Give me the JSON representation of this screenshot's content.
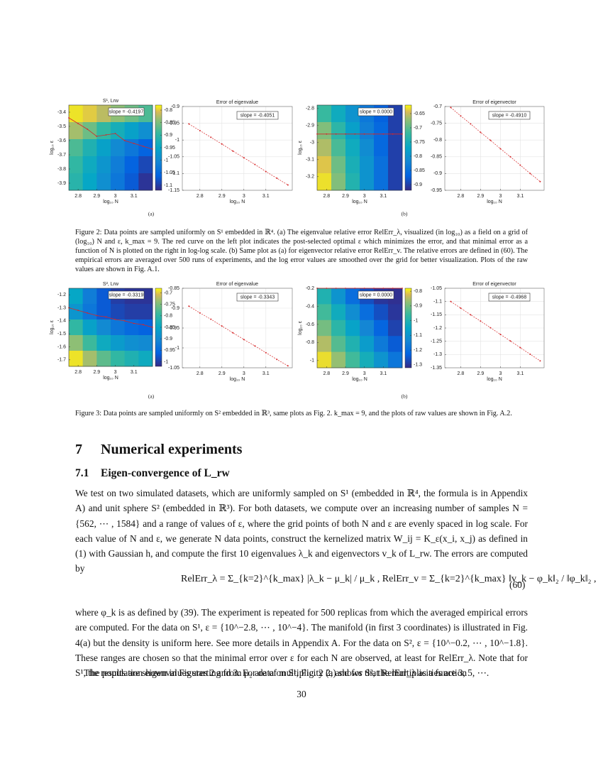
{
  "chart_data": [
    {
      "type": "heatmap",
      "title": "S¹, Lrw",
      "xlabel": "log₁₀ N",
      "ylabel": "log₁₀ ε",
      "xlim": [
        2.75,
        3.2
      ],
      "ylim": [
        -3.95,
        -3.35
      ],
      "xticks": [
        2.8,
        2.9,
        3,
        3.1
      ],
      "yticks": [
        -3.4,
        -3.5,
        -3.6,
        -3.7,
        -3.8,
        -3.9
      ],
      "z": [
        [
          -0.79,
          -0.8,
          -0.82,
          -0.84,
          -0.86,
          -0.88
        ],
        [
          -0.83,
          -0.86,
          -0.9,
          -0.93,
          -0.96,
          -0.99
        ],
        [
          -0.88,
          -0.92,
          -0.96,
          -1.0,
          -1.03,
          -1.06
        ],
        [
          -0.9,
          -0.94,
          -0.98,
          -1.02,
          -1.06,
          -1.09
        ],
        [
          -0.91,
          -0.95,
          -0.99,
          -1.03,
          -1.07,
          -1.11
        ]
      ],
      "zlim": [
        -1.12,
        -0.78
      ],
      "zticks": [
        -0.8,
        -0.85,
        -0.9,
        -0.95,
        -1,
        -1.05,
        -1.1
      ],
      "curve": {
        "x": [
          2.75,
          2.8,
          2.85,
          2.9,
          2.95,
          3.0,
          3.05,
          3.1,
          3.15,
          3.2
        ],
        "y": [
          -3.44,
          -3.48,
          -3.52,
          -3.57,
          -3.56,
          -3.55,
          -3.6,
          -3.62,
          -3.64,
          -3.66
        ],
        "color": "#d62728"
      },
      "annotation": "slope = -0.4197"
    },
    {
      "type": "line",
      "title": "Error of eigenvalue",
      "xlabel": "log₁₀ N",
      "xlim": [
        2.72,
        3.22
      ],
      "ylim": [
        -1.15,
        -0.9
      ],
      "xticks": [
        2.8,
        2.9,
        3,
        3.1
      ],
      "yticks": [
        -0.9,
        -0.95,
        -1,
        -1.05,
        -1.1,
        -1.15
      ],
      "x": [
        2.75,
        2.8,
        2.85,
        2.9,
        2.95,
        3.0,
        3.05,
        3.1,
        3.15,
        3.2
      ],
      "values": [
        -0.952,
        -0.972,
        -0.992,
        -1.012,
        -1.033,
        -1.053,
        -1.073,
        -1.094,
        -1.114,
        -1.134
      ],
      "color": "#d62728",
      "grid": true,
      "annotation": "slope = -0.4051"
    },
    {
      "type": "heatmap",
      "title": null,
      "xlabel": "log₁₀ N",
      "ylabel": "log₁₀ ε",
      "xlim": [
        2.75,
        3.2
      ],
      "ylim": [
        -3.28,
        -2.78
      ],
      "xticks": [
        2.8,
        2.9,
        3,
        3.1
      ],
      "yticks": [
        -2.8,
        -2.9,
        -3,
        -3.1,
        -3.2
      ],
      "z": [
        [
          -0.72,
          -0.76,
          -0.8,
          -0.84,
          -0.87,
          -0.9
        ],
        [
          -0.68,
          -0.73,
          -0.78,
          -0.83,
          -0.86,
          -0.9
        ],
        [
          -0.66,
          -0.71,
          -0.76,
          -0.81,
          -0.86,
          -0.9
        ],
        [
          -0.64,
          -0.69,
          -0.75,
          -0.8,
          -0.85,
          -0.9
        ],
        [
          -0.63,
          -0.68,
          -0.74,
          -0.8,
          -0.85,
          -0.9
        ]
      ],
      "zlim": [
        -0.92,
        -0.62
      ],
      "zticks": [
        -0.65,
        -0.7,
        -0.75,
        -0.8,
        -0.85,
        -0.9
      ],
      "curve": {
        "x": [
          2.75,
          2.8,
          2.85,
          2.9,
          2.95,
          3.0,
          3.05,
          3.1,
          3.15,
          3.2
        ],
        "y": [
          -2.95,
          -2.95,
          -2.95,
          -2.95,
          -2.95,
          -2.95,
          -2.95,
          -2.95,
          -2.95,
          -2.95
        ],
        "color": "#d62728"
      },
      "annotation": "slope = 0.0000"
    },
    {
      "type": "line",
      "title": "Error of eigenvector",
      "xlabel": "log₁₀ N",
      "xlim": [
        2.72,
        3.22
      ],
      "ylim": [
        -0.95,
        -0.7
      ],
      "xticks": [
        2.8,
        2.9,
        3,
        3.1
      ],
      "yticks": [
        -0.7,
        -0.75,
        -0.8,
        -0.85,
        -0.9,
        -0.95
      ],
      "x": [
        2.75,
        2.8,
        2.85,
        2.9,
        2.95,
        3.0,
        3.05,
        3.1,
        3.15,
        3.2
      ],
      "values": [
        -0.703,
        -0.728,
        -0.752,
        -0.777,
        -0.801,
        -0.826,
        -0.85,
        -0.875,
        -0.9,
        -0.924
      ],
      "color": "#d62728",
      "grid": true,
      "annotation": "slope = -0.4910"
    },
    {
      "type": "heatmap",
      "title": "S², Lrw",
      "xlabel": "log₁₀ N",
      "ylabel": "log₁₀ ε",
      "xlim": [
        2.75,
        3.2
      ],
      "ylim": [
        -1.75,
        -1.15
      ],
      "xticks": [
        2.8,
        2.9,
        3,
        3.1
      ],
      "yticks": [
        -1.2,
        -1.3,
        -1.4,
        -1.5,
        -1.6,
        -1.7
      ],
      "z": [
        [
          -0.85,
          -0.92,
          -0.97,
          -1.0,
          -1.01,
          -1.01
        ],
        [
          -0.88,
          -0.93,
          -0.97,
          -0.99,
          -1.0,
          -1.0
        ],
        [
          -0.8,
          -0.86,
          -0.9,
          -0.93,
          -0.95,
          -0.96
        ],
        [
          -0.74,
          -0.79,
          -0.84,
          -0.87,
          -0.89,
          -0.9
        ],
        [
          -0.69,
          -0.73,
          -0.77,
          -0.8,
          -0.82,
          -0.84
        ]
      ],
      "zlim": [
        -1.02,
        -0.68
      ],
      "zticks": [
        -0.7,
        -0.75,
        -0.8,
        -0.85,
        -0.9,
        -0.95,
        -1
      ],
      "curve": {
        "x": [
          2.75,
          2.8,
          2.85,
          2.9,
          2.95,
          3.0,
          3.05,
          3.1,
          3.15,
          3.2
        ],
        "y": [
          -1.3,
          -1.32,
          -1.34,
          -1.36,
          -1.37,
          -1.39,
          -1.4,
          -1.42,
          -1.43,
          -1.45
        ],
        "color": "#d62728"
      },
      "annotation": "slope = -0.3319"
    },
    {
      "type": "line",
      "title": "Error of eigenvalue",
      "xlabel": "log₁₀ N",
      "xlim": [
        2.72,
        3.22
      ],
      "ylim": [
        -1.05,
        -0.85
      ],
      "xticks": [
        2.8,
        2.9,
        3,
        3.1
      ],
      "yticks": [
        -0.85,
        -0.9,
        -0.95,
        -1,
        -1.05
      ],
      "x": [
        2.75,
        2.8,
        2.85,
        2.9,
        2.95,
        3.0,
        3.05,
        3.1,
        3.15,
        3.2
      ],
      "values": [
        -0.895,
        -0.912,
        -0.928,
        -0.945,
        -0.962,
        -0.979,
        -0.995,
        -1.012,
        -1.029,
        -1.045
      ],
      "color": "#d62728",
      "grid": true,
      "annotation": "slope = -0.3343"
    },
    {
      "type": "heatmap",
      "title": null,
      "xlabel": "log₁₀ N",
      "ylabel": "log₁₀ ε",
      "xlim": [
        2.75,
        3.2
      ],
      "ylim": [
        -1.08,
        -0.2
      ],
      "xticks": [
        2.8,
        2.9,
        3,
        3.1
      ],
      "yticks": [
        -0.2,
        -0.4,
        -0.6,
        -0.8,
        -1
      ],
      "z": [
        [
          -1.0,
          -1.1,
          -1.2,
          -1.26,
          -1.3,
          -1.31
        ],
        [
          -0.95,
          -1.03,
          -1.12,
          -1.2,
          -1.26,
          -1.3
        ],
        [
          -0.9,
          -0.98,
          -1.06,
          -1.14,
          -1.22,
          -1.28
        ],
        [
          -0.85,
          -0.93,
          -1.0,
          -1.08,
          -1.17,
          -1.24
        ],
        [
          -0.8,
          -0.87,
          -0.95,
          -1.02,
          -1.1,
          -1.18
        ]
      ],
      "zlim": [
        -1.32,
        -0.78
      ],
      "zticks": [
        -0.8,
        -0.9,
        -1,
        -1.1,
        -1.2,
        -1.3
      ],
      "curve": {
        "x": [
          2.75,
          2.8,
          2.85,
          2.9,
          2.95,
          3.0,
          3.05,
          3.1,
          3.15,
          3.2
        ],
        "y": [
          -0.2,
          -0.2,
          -0.2,
          -0.2,
          -0.2,
          -0.2,
          -0.2,
          -0.2,
          -0.2,
          -0.2
        ],
        "color": "#d62728"
      },
      "annotation": "slope = 0.0000"
    },
    {
      "type": "line",
      "title": "Error of eigenvector",
      "xlabel": "log₁₀ N",
      "xlim": [
        2.72,
        3.22
      ],
      "ylim": [
        -1.35,
        -1.05
      ],
      "xticks": [
        2.8,
        2.9,
        3,
        3.1
      ],
      "yticks": [
        -1.05,
        -1.1,
        -1.15,
        -1.2,
        -1.25,
        -1.3,
        -1.35
      ],
      "x": [
        2.75,
        2.8,
        2.85,
        2.9,
        2.95,
        3.0,
        3.05,
        3.1,
        3.15,
        3.2
      ],
      "values": [
        -1.1,
        -1.125,
        -1.15,
        -1.174,
        -1.199,
        -1.224,
        -1.249,
        -1.274,
        -1.299,
        -1.324
      ],
      "color": "#d62728",
      "grid": true,
      "annotation": "slope = -0.4968"
    }
  ],
  "figure2": {
    "labels": [
      "(a)",
      "(b)"
    ],
    "caption": "Figure 2: Data points are sampled uniformly on S¹ embedded in ℝ⁴. (a) The eigenvalue relative error RelErr_λ, visualized (in log₁₀) as a field on a grid of (log₁₀) N and ε, k_max = 9. The red curve on the left plot indicates the post-selected optimal ε which minimizes the error, and that minimal error as a function of N is plotted on the right in log-log scale. (b) Same plot as (a) for eigenvector relative error RelErr_v. The relative errors are defined in (60). The empirical errors are averaged over 500 runs of experiments, and the log error values are smoothed over the grid for better visualization. Plots of the raw values are shown in Fig. A.1."
  },
  "figure3": {
    "labels": [
      "(a)",
      "(b)"
    ],
    "caption": "Figure 3: Data points are sampled uniformly on S² embedded in ℝ³, same plots as Fig. 2. k_max = 9, and the plots of raw values are shown in Fig. A.2."
  },
  "section": {
    "number": "7",
    "title": "Numerical experiments"
  },
  "subsection": {
    "number": "7.1",
    "title": "Eigen-convergence of L_rw"
  },
  "paragraphs": [
    "We test on two simulated datasets, which are uniformly sampled on S¹ (embedded in ℝ⁴, the formula is in Appendix A) and unit sphere S² (embedded in ℝ³). For both datasets, we compute over an increasing number of samples N = {562, ⋯ , 1584} and a range of values of ε, where the grid points of both N and ε are evenly spaced in log scale. For each value of N and ε, we generate N data points, construct the kernelized matrix W_ij = K_ε(x_i, x_j) as defined in (1) with Gaussian h, and compute the first 10 eigenvalues λ_k and eigenvectors v_k of L_rw. The errors are computed by",
    "where φ_k is as defined by (39). The experiment is repeated for 500 replicas from which the averaged empirical errors are computed. For the data on S¹, ε = {10^−2.8, ⋯ , 10^−4}. The manifold (in first 3 coordinates) is illustrated in Fig. 4(a) but the density is uniform here. See more details in Appendix A. For the data on S², ε = {10^−0.2, ⋯ , 10^−1.8}. These ranges are chosen so that the minimal error over ε for each N are observed, at least for RelErr_λ. Note that for S¹, the population eigenvalues starting from μ₂ are of multiplicity 2, and for S², the multiplicities are 3, 5, ⋯.",
    "The results are shown in Figures 2 and 3. For data on S¹, Fig. 2 (a) shows that RelErr_λ as a function"
  ],
  "equation": {
    "text": "RelErr_λ = Σ_{k=2}^{k_max} |λ_k − μ_k| / μ_k ,    RelErr_v = Σ_{k=2}^{k_max} ‖v_k − φ_k‖₂ / ‖φ_k‖₂ ,",
    "number": "(60)"
  },
  "page_number": "30"
}
